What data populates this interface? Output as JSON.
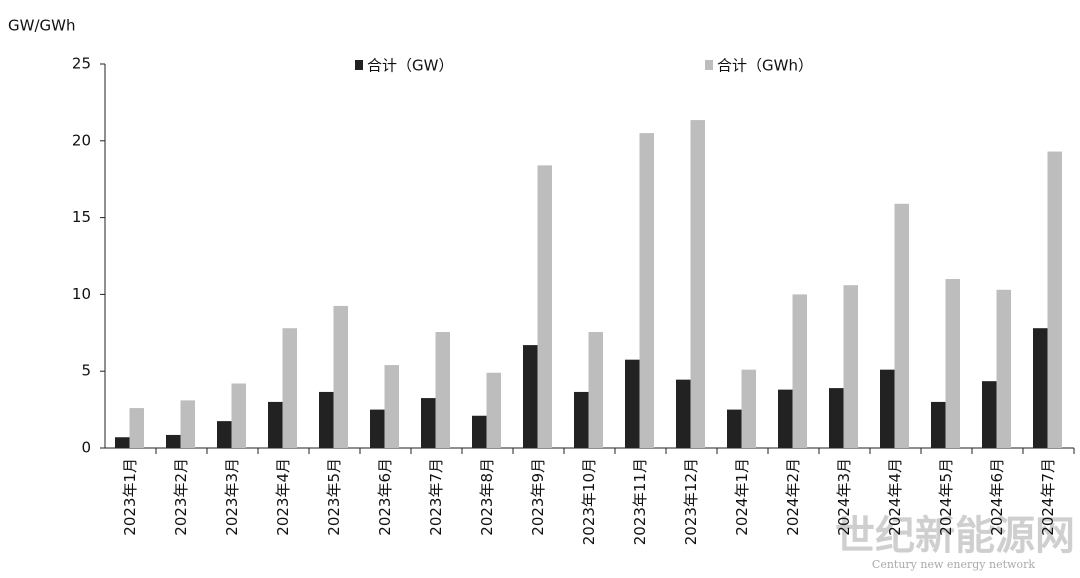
{
  "chart_data": {
    "type": "bar",
    "y_label": "GW/GWh",
    "categories": [
      "2023年1月",
      "2023年2月",
      "2023年3月",
      "2023年4月",
      "2023年5月",
      "2023年6月",
      "2023年7月",
      "2023年8月",
      "2023年9月",
      "2023年10月",
      "2023年11月",
      "2023年12月",
      "2024年1月",
      "2024年2月",
      "2024年3月",
      "2024年4月",
      "2024年5月",
      "2024年6月",
      "2024年7月"
    ],
    "series": [
      {
        "name": "合计（GW）",
        "color": "#222222",
        "values": [
          0.7,
          0.85,
          1.75,
          3.0,
          3.65,
          2.5,
          3.25,
          2.1,
          6.7,
          3.65,
          5.75,
          4.45,
          2.5,
          3.8,
          3.9,
          5.1,
          3.0,
          4.35,
          7.8
        ]
      },
      {
        "name": "合计（GWh）",
        "color": "#bdbdbd",
        "values": [
          2.6,
          3.1,
          4.2,
          7.8,
          9.25,
          5.4,
          7.55,
          4.9,
          18.4,
          7.55,
          20.5,
          21.35,
          5.1,
          10.0,
          10.6,
          15.9,
          11.0,
          10.3,
          19.3
        ]
      }
    ],
    "ylim": [
      0,
      25
    ],
    "yticks": [
      0,
      5,
      10,
      15,
      20,
      25
    ],
    "grid": false,
    "watermark": "世纪新能源网",
    "watermark_sub": "Century new energy network"
  }
}
